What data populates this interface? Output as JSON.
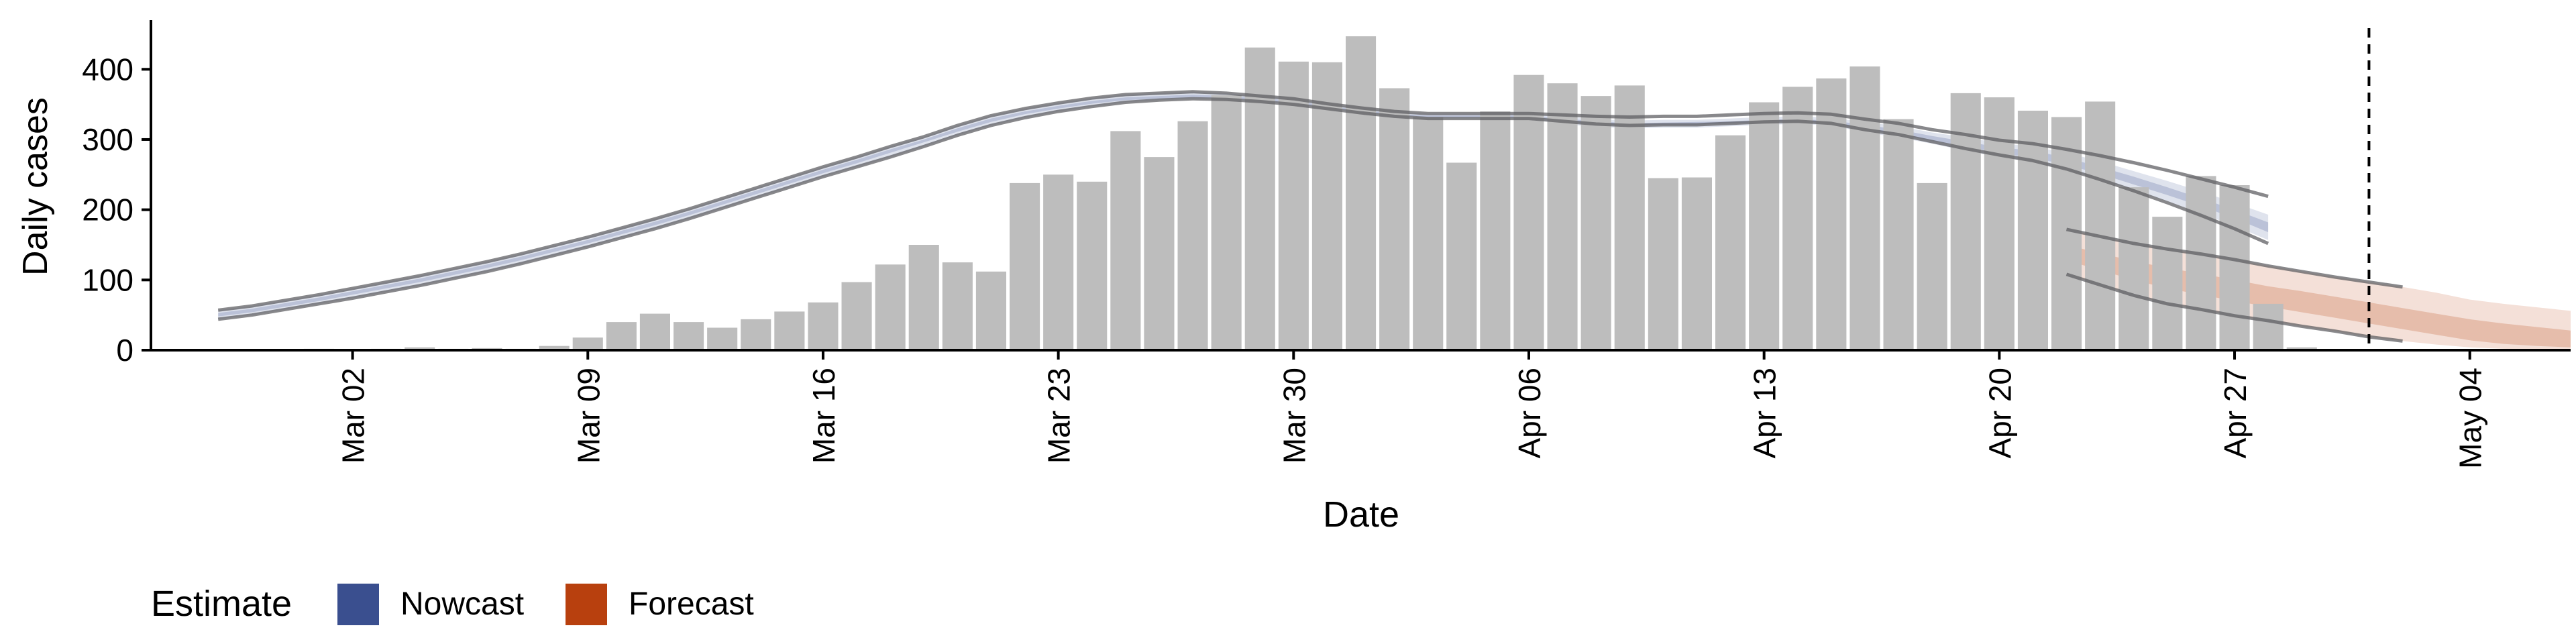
{
  "chart_data": {
    "type": "bar",
    "xlabel": "Date",
    "ylabel": "Daily cases",
    "ylim": [
      0,
      470
    ],
    "x_domain": [
      "2020-02-25",
      "2020-05-07"
    ],
    "y_ticks": [
      0,
      100,
      200,
      300,
      400
    ],
    "x_ticks": [
      {
        "date": "2020-03-02",
        "label": "Mar 02"
      },
      {
        "date": "2020-03-09",
        "label": "Mar 09"
      },
      {
        "date": "2020-03-16",
        "label": "Mar 16"
      },
      {
        "date": "2020-03-23",
        "label": "Mar 23"
      },
      {
        "date": "2020-03-30",
        "label": "Mar 30"
      },
      {
        "date": "2020-04-06",
        "label": "Apr 06"
      },
      {
        "date": "2020-04-13",
        "label": "Apr 13"
      },
      {
        "date": "2020-04-20",
        "label": "Apr 20"
      },
      {
        "date": "2020-04-27",
        "label": "Apr 27"
      },
      {
        "date": "2020-05-04",
        "label": "May 04"
      }
    ],
    "bars": {
      "start_date": "2020-02-29",
      "color": "#bdbdbd",
      "values": [
        1,
        2,
        1,
        2,
        4,
        2,
        3,
        2,
        6,
        18,
        40,
        52,
        40,
        32,
        44,
        55,
        68,
        97,
        122,
        150,
        125,
        112,
        238,
        250,
        240,
        312,
        275,
        326,
        363,
        431,
        411,
        410,
        447,
        373,
        332,
        267,
        340,
        392,
        380,
        362,
        377,
        245,
        246,
        306,
        353,
        375,
        387,
        404,
        329,
        238,
        366,
        360,
        341,
        332,
        354,
        232,
        190,
        248,
        235,
        66,
        4
      ]
    },
    "nowcast": {
      "start_date": "2020-02-27",
      "color": "#3a4f8f",
      "outer_upper": [
        57,
        63,
        71,
        79,
        88,
        97,
        106,
        116,
        126,
        137,
        149,
        161,
        174,
        187,
        201,
        216,
        231,
        246,
        261,
        275,
        290,
        304,
        320,
        334,
        344,
        352,
        359,
        364,
        366,
        368,
        366,
        362,
        358,
        351,
        345,
        340,
        337,
        337,
        337,
        337,
        333,
        329,
        327,
        328,
        328,
        330,
        332,
        333,
        331,
        325,
        319,
        310,
        303,
        295,
        290,
        281,
        269,
        255,
        241,
        226,
        210,
        193
      ],
      "outer_lower": [
        44,
        50,
        58,
        66,
        74,
        83,
        92,
        102,
        112,
        123,
        135,
        147,
        160,
        173,
        187,
        202,
        217,
        232,
        247,
        261,
        275,
        290,
        306,
        320,
        331,
        340,
        347,
        353,
        356,
        358,
        357,
        354,
        350,
        344,
        338,
        333,
        330,
        330,
        330,
        330,
        322,
        318,
        316,
        317,
        317,
        319,
        321,
        322,
        320,
        310,
        303,
        294,
        284,
        275,
        268,
        257,
        243,
        228,
        212,
        195,
        177,
        157
      ],
      "inner_upper": [
        53,
        59,
        67,
        75,
        84,
        93,
        102,
        112,
        122,
        133,
        145,
        157,
        170,
        183,
        197,
        212,
        227,
        242,
        257,
        271,
        286,
        300,
        316,
        330,
        340,
        348,
        355,
        360,
        362,
        364,
        362,
        359,
        355,
        348,
        342,
        337,
        334,
        334,
        334,
        334,
        330,
        326,
        323,
        324,
        325,
        326,
        328,
        329,
        327,
        321,
        314,
        305,
        297,
        289,
        284,
        274,
        261,
        247,
        232,
        216,
        200,
        182
      ],
      "inner_lower": [
        48,
        54,
        62,
        70,
        79,
        88,
        97,
        107,
        117,
        128,
        140,
        152,
        165,
        178,
        192,
        207,
        222,
        237,
        252,
        266,
        281,
        296,
        311,
        325,
        336,
        344,
        351,
        356,
        358,
        360,
        359,
        356,
        352,
        346,
        340,
        335,
        332,
        332,
        332,
        332,
        326,
        322,
        320,
        321,
        321,
        323,
        325,
        326,
        323,
        314,
        307,
        298,
        290,
        281,
        274,
        264,
        251,
        236,
        221,
        205,
        188,
        168
      ],
      "line_upper": [
        57,
        63,
        71,
        79,
        88,
        97,
        106,
        116,
        126,
        137,
        149,
        161,
        174,
        187,
        201,
        216,
        231,
        246,
        261,
        275,
        290,
        304,
        320,
        334,
        344,
        352,
        359,
        364,
        366,
        368,
        366,
        362,
        358,
        351,
        345,
        340,
        337,
        337,
        337,
        337,
        335,
        333,
        332,
        333,
        333,
        335,
        337,
        338,
        336,
        329,
        323,
        314,
        307,
        299,
        294,
        286,
        277,
        267,
        256,
        244,
        232,
        219
      ],
      "line_lower": [
        44,
        50,
        58,
        66,
        74,
        83,
        92,
        102,
        112,
        123,
        135,
        147,
        160,
        173,
        187,
        202,
        217,
        232,
        247,
        261,
        275,
        290,
        306,
        320,
        331,
        340,
        347,
        353,
        356,
        358,
        357,
        354,
        350,
        344,
        338,
        333,
        330,
        330,
        330,
        330,
        326,
        322,
        320,
        321,
        321,
        323,
        325,
        326,
        323,
        314,
        307,
        297,
        287,
        278,
        270,
        258,
        243,
        227,
        210,
        192,
        173,
        152
      ]
    },
    "forecast": {
      "start_date": "2020-04-22",
      "color": "#b8400e",
      "outer_upper": [
        172,
        162,
        152,
        144,
        137,
        129,
        120,
        112,
        104,
        97,
        90,
        82,
        72,
        66,
        61,
        56
      ],
      "outer_lower": [
        108,
        93,
        78,
        66,
        58,
        49,
        42,
        34,
        27,
        19,
        13,
        8,
        4,
        2,
        1,
        0
      ],
      "inner_upper": [
        150,
        138,
        127,
        117,
        109,
        100,
        91,
        84,
        76,
        68,
        60,
        52,
        44,
        38,
        33,
        28
      ],
      "inner_lower": [
        128,
        114,
        100,
        88,
        79,
        70,
        62,
        54,
        46,
        38,
        30,
        22,
        14,
        9,
        6,
        4
      ],
      "line_upper": [
        172,
        162,
        152,
        144,
        137,
        129,
        120,
        112,
        104,
        97,
        90
      ],
      "line_lower": [
        108,
        93,
        78,
        66,
        58,
        49,
        42,
        34,
        27,
        19,
        13
      ]
    },
    "vline_date": "2020-05-01",
    "legend": {
      "title": "Estimate",
      "position": "bottom-left",
      "items": [
        {
          "label": "Nowcast",
          "color": "#3a4f8f"
        },
        {
          "label": "Forecast",
          "color": "#b8400e"
        }
      ]
    },
    "grid": false
  }
}
